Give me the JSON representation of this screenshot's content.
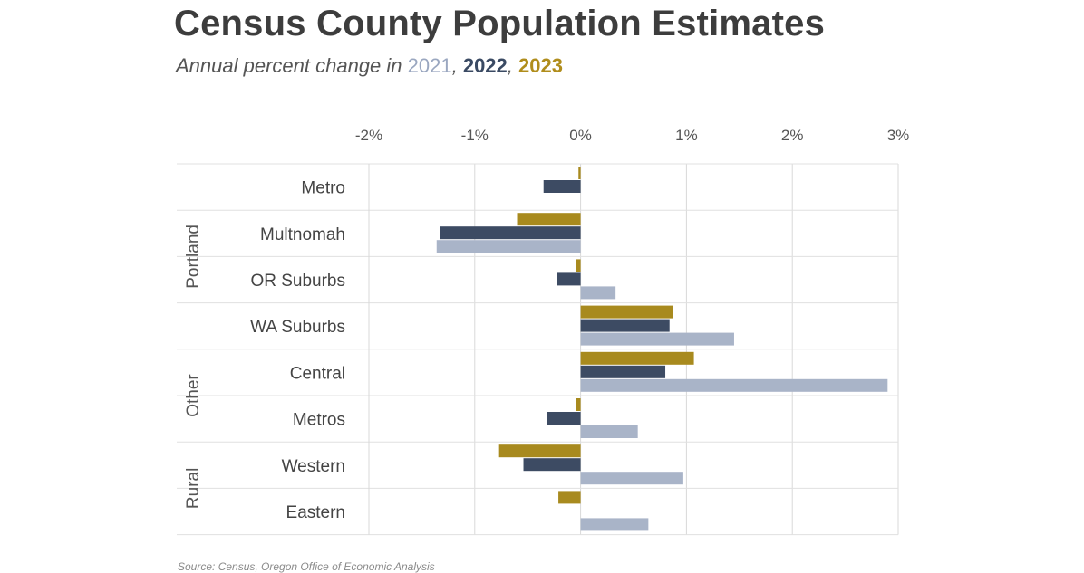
{
  "chart_data": {
    "type": "bar",
    "orientation": "horizontal",
    "title": "Census County Population Estimates",
    "subtitle_prefix": "Annual percent change in ",
    "subtitle_sep": ", ",
    "categories": [
      "Metro",
      "Multnomah",
      "OR Suburbs",
      "WA Suburbs",
      "Central",
      "Metros",
      "Western",
      "Eastern"
    ],
    "groups": [
      {
        "name": "Portland",
        "categories": [
          "Metro",
          "Multnomah",
          "OR Suburbs",
          "WA Suburbs"
        ]
      },
      {
        "name": "Other",
        "categories": [
          "Central",
          "Metros"
        ]
      },
      {
        "name": "Rural",
        "categories": [
          "Western",
          "Eastern"
        ]
      }
    ],
    "series": [
      {
        "name": "2023",
        "color": "#a88a1e",
        "values": [
          -0.02,
          -0.6,
          -0.04,
          0.87,
          1.07,
          -0.04,
          -0.77,
          -0.21
        ]
      },
      {
        "name": "2022",
        "color": "#3d4b63",
        "values": [
          -0.35,
          -1.33,
          -0.22,
          0.84,
          0.8,
          -0.32,
          -0.54,
          0.0
        ]
      },
      {
        "name": "2021",
        "color": "#a9b4c8",
        "values": [
          0.0,
          -1.36,
          0.33,
          1.45,
          2.9,
          0.54,
          0.97,
          0.64
        ]
      }
    ],
    "xlim": [
      -2,
      3
    ],
    "xticks": [
      -2,
      -1,
      0,
      1,
      2,
      3
    ],
    "xtick_labels": [
      "-2%",
      "-1%",
      "0%",
      "1%",
      "2%",
      "3%"
    ],
    "grid": true,
    "legend": "in subtitle"
  },
  "source": "Source: Census, Oregon Office of Economic Analysis"
}
